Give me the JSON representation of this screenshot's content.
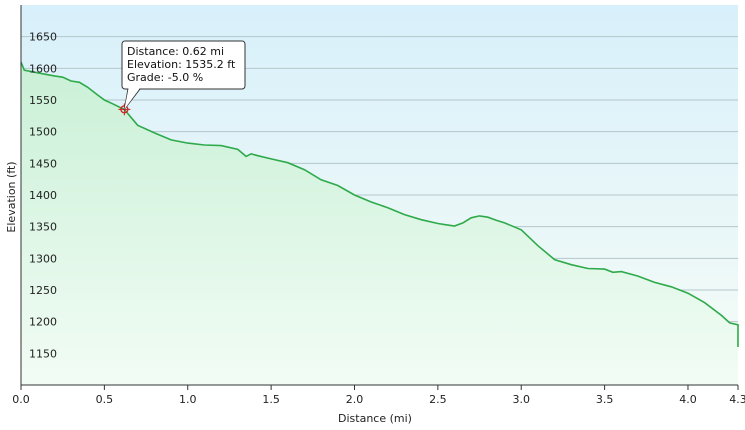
{
  "chart_data": {
    "type": "area",
    "title": "",
    "xlabel": "Distance (mi)",
    "ylabel": "Elevation (ft)",
    "xlim": [
      0,
      4.3
    ],
    "ylim": [
      1100,
      1700
    ],
    "x_ticks": [
      0.0,
      0.5,
      1.0,
      1.5,
      2.0,
      2.5,
      3.0,
      3.5,
      4.0,
      4.3
    ],
    "x_tick_labels": [
      "0.0",
      "0.5",
      "1.0",
      "1.5",
      "2.0",
      "2.5",
      "3.0",
      "3.5",
      "4.0",
      "4.3"
    ],
    "y_ticks": [
      1150,
      1200,
      1250,
      1300,
      1350,
      1400,
      1450,
      1500,
      1550,
      1600,
      1650
    ],
    "y_tick_labels": [
      "1150",
      "1200",
      "1250",
      "1300",
      "1350",
      "1400",
      "1450",
      "1500",
      "1550",
      "1600",
      "1650"
    ],
    "grid": true,
    "colors": {
      "line": "#2eaa4a",
      "fill_top": "#c9f0d6",
      "fill_bottom": "#f2fcf5",
      "bg_top": "#d8f0fb",
      "bg_bottom": "#f6fcf6",
      "grid": "#b4c6cc",
      "marker": "#d02020"
    },
    "series": [
      {
        "x": [
          0.0,
          0.02,
          0.1,
          0.2,
          0.25,
          0.3,
          0.35,
          0.4,
          0.45,
          0.5,
          0.55,
          0.62,
          0.7,
          0.8,
          0.9,
          1.0,
          1.1,
          1.2,
          1.3,
          1.35,
          1.38,
          1.42,
          1.5,
          1.6,
          1.7,
          1.8,
          1.9,
          2.0,
          2.1,
          2.2,
          2.3,
          2.4,
          2.5,
          2.55,
          2.6,
          2.65,
          2.7,
          2.75,
          2.8,
          2.85,
          2.9,
          3.0,
          3.1,
          3.2,
          3.3,
          3.4,
          3.5,
          3.55,
          3.6,
          3.7,
          3.8,
          3.9,
          4.0,
          4.1,
          4.2,
          4.25,
          4.3,
          4.3
        ],
        "y": [
          1610,
          1597,
          1593,
          1588,
          1586,
          1580,
          1578,
          1570,
          1560,
          1550,
          1544,
          1535,
          1510,
          1498,
          1487,
          1482,
          1479,
          1478,
          1472,
          1461,
          1465,
          1462,
          1457,
          1451,
          1440,
          1424,
          1415,
          1400,
          1389,
          1380,
          1369,
          1361,
          1355,
          1353,
          1351,
          1356,
          1364,
          1367,
          1365,
          1360,
          1356,
          1345,
          1320,
          1298,
          1290,
          1284,
          1283,
          1278,
          1279,
          1272,
          1262,
          1255,
          1245,
          1230,
          1210,
          1198,
          1195,
          1160
        ]
      }
    ],
    "tooltip": {
      "distance_line": "Distance: 0.62 mi",
      "elevation_line": "Elevation: 1535.2 ft",
      "grade_line": "Grade: -5.0 %",
      "x": 0.62,
      "y": 1535.2
    }
  }
}
